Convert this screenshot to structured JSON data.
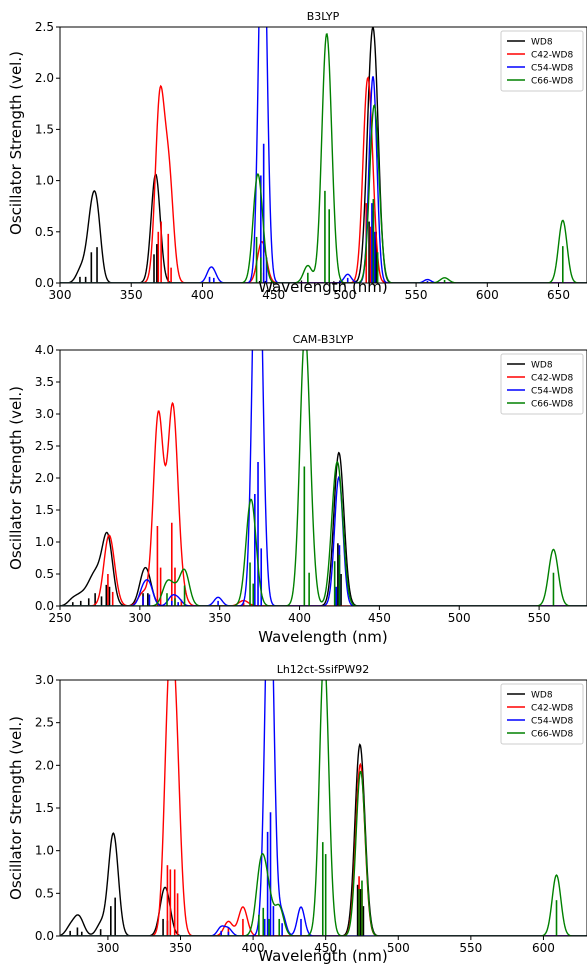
{
  "chart_data": [
    {
      "type": "line",
      "title": "B3LYP",
      "xlabel": "Wavelength (nm)",
      "ylabel": "Oscillator Strength (vel.)",
      "xlim": [
        300,
        670
      ],
      "ylim": [
        0,
        2.5
      ],
      "xticks": [
        300,
        350,
        400,
        450,
        500,
        550,
        600,
        650
      ],
      "yticks": [
        0.0,
        0.5,
        1.0,
        1.5,
        2.0,
        2.5
      ],
      "grid": false,
      "legend_position": "top-right",
      "series": [
        {
          "name": "WD8",
          "color": "#000000",
          "sigma": 3,
          "sticks": [
            [
              314,
              0.06
            ],
            [
              318,
              0.06
            ],
            [
              322,
              0.3
            ],
            [
              326,
              0.35
            ],
            [
              366,
              0.28
            ],
            [
              368,
              0.38
            ],
            [
              517,
              0.6
            ],
            [
              520,
              0.7
            ],
            [
              522,
              0.5
            ]
          ]
        },
        {
          "name": "C42-WD8",
          "color": "#ff0000",
          "sigma": 3,
          "sticks": [
            [
              369,
              0.5
            ],
            [
              371,
              0.6
            ],
            [
              376,
              0.48
            ],
            [
              378,
              0.15
            ],
            [
              441,
              0.15
            ],
            [
              443,
              0.1
            ],
            [
              515,
              0.78
            ],
            [
              518,
              0.55
            ]
          ]
        },
        {
          "name": "C54-WD8",
          "color": "#0000ff",
          "sigma": 2.5,
          "sticks": [
            [
              405,
              0.06
            ],
            [
              408,
              0.05
            ],
            [
              441,
              1.05
            ],
            [
              443,
              1.36
            ],
            [
              445,
              0.25
            ],
            [
              502,
              0.05
            ],
            [
              519,
              0.78
            ],
            [
              521,
              0.5
            ],
            [
              558,
              0.02
            ]
          ]
        },
        {
          "name": "C66-WD8",
          "color": "#008000",
          "sigma": 3,
          "sticks": [
            [
              438,
              0.45
            ],
            [
              441,
              0.25
            ],
            [
              474,
              0.1
            ],
            [
              486,
              0.9
            ],
            [
              489,
              0.72
            ],
            [
              520,
              0.82
            ],
            [
              523,
              0.3
            ],
            [
              570,
              0.03
            ],
            [
              653,
              0.36
            ]
          ]
        }
      ]
    },
    {
      "type": "line",
      "title": "CAM-B3LYP",
      "xlabel": "Wavelength (nm)",
      "ylabel": "Oscillator Strength (vel.)",
      "xlim": [
        250,
        580
      ],
      "ylim": [
        0,
        4.0
      ],
      "xticks": [
        250,
        300,
        350,
        400,
        450,
        500,
        550
      ],
      "yticks": [
        0.0,
        0.5,
        1.0,
        1.5,
        2.0,
        2.5,
        3.0,
        3.5,
        4.0
      ],
      "grid": false,
      "legend_position": "top-right",
      "series": [
        {
          "name": "WD8",
          "color": "#000000",
          "sigma": 3,
          "sticks": [
            [
              258,
              0.06
            ],
            [
              263,
              0.08
            ],
            [
              268,
              0.12
            ],
            [
              272,
              0.2
            ],
            [
              276,
              0.15
            ],
            [
              279,
              0.33
            ],
            [
              281,
              0.3
            ],
            [
              302,
              0.2
            ],
            [
              305,
              0.2
            ],
            [
              424,
              0.98
            ],
            [
              426,
              0.5
            ]
          ]
        },
        {
          "name": "C42-WD8",
          "color": "#ff0000",
          "sigma": 3,
          "sticks": [
            [
              280,
              0.5
            ],
            [
              283,
              0.22
            ],
            [
              302,
              0.12
            ],
            [
              311,
              1.25
            ],
            [
              313,
              0.6
            ],
            [
              320,
              1.3
            ],
            [
              322,
              0.6
            ],
            [
              326,
              0.1
            ],
            [
              365,
              0.05
            ]
          ]
        },
        {
          "name": "C54-WD8",
          "color": "#0000ff",
          "sigma": 2.5,
          "sticks": [
            [
              302,
              0.15
            ],
            [
              306,
              0.18
            ],
            [
              320,
              0.08
            ],
            [
              324,
              0.06
            ],
            [
              349,
              0.08
            ],
            [
              372,
              1.75
            ],
            [
              374,
              2.25
            ],
            [
              376,
              0.9
            ],
            [
              425,
              0.95
            ],
            [
              423,
              0.3
            ]
          ]
        },
        {
          "name": "C66-WD8",
          "color": "#008000",
          "sigma": 3,
          "sticks": [
            [
              317,
              0.2
            ],
            [
              322,
              0.12
            ],
            [
              328,
              0.32
            ],
            [
              369,
              0.68
            ],
            [
              371,
              0.35
            ],
            [
              403,
              2.18
            ],
            [
              406,
              0.52
            ],
            [
              422,
              0.7
            ],
            [
              425,
              0.8
            ],
            [
              559,
              0.52
            ]
          ]
        }
      ]
    },
    {
      "type": "line",
      "title": "Lh12ct-SsifPW92",
      "xlabel": "Wavelength (nm)",
      "ylabel": "Oscillator Strength (vel.)",
      "xlim": [
        267,
        630
      ],
      "ylim": [
        0,
        3.0
      ],
      "xticks": [
        300,
        350,
        400,
        450,
        500,
        550,
        600
      ],
      "yticks": [
        0.0,
        0.5,
        1.0,
        1.5,
        2.0,
        2.5,
        3.0
      ],
      "grid": false,
      "legend_position": "top-right",
      "series": [
        {
          "name": "WD8",
          "color": "#000000",
          "sigma": 3,
          "sticks": [
            [
              274,
              0.06
            ],
            [
              279,
              0.1
            ],
            [
              282,
              0.05
            ],
            [
              295,
              0.08
            ],
            [
              302,
              0.35
            ],
            [
              305,
              0.45
            ],
            [
              338,
              0.2
            ],
            [
              341,
              0.18
            ],
            [
              472,
              0.6
            ],
            [
              474,
              0.55
            ],
            [
              476,
              0.35
            ]
          ]
        },
        {
          "name": "C42-WD8",
          "color": "#ff0000",
          "sigma": 3,
          "sticks": [
            [
              341,
              0.83
            ],
            [
              343,
              0.78
            ],
            [
              346,
              0.78
            ],
            [
              348,
              0.5
            ],
            [
              383,
              0.1
            ],
            [
              393,
              0.2
            ],
            [
              473,
              0.7
            ],
            [
              475,
              0.55
            ]
          ]
        },
        {
          "name": "C54-WD8",
          "color": "#0000ff",
          "sigma": 2.5,
          "sticks": [
            [
              378,
              0.06
            ],
            [
              383,
              0.05
            ],
            [
              408,
              0.2
            ],
            [
              410,
              1.22
            ],
            [
              412,
              1.45
            ],
            [
              414,
              0.35
            ],
            [
              420,
              0.15
            ],
            [
              433,
              0.2
            ]
          ]
        },
        {
          "name": "C66-WD8",
          "color": "#008000",
          "sigma": 3,
          "sticks": [
            [
              404,
              0.25
            ],
            [
              407,
              0.33
            ],
            [
              411,
              0.2
            ],
            [
              418,
              0.2
            ],
            [
              448,
              1.1
            ],
            [
              450,
              0.96
            ],
            [
              473,
              0.55
            ],
            [
              475,
              0.65
            ],
            [
              609,
              0.42
            ]
          ]
        }
      ]
    }
  ]
}
